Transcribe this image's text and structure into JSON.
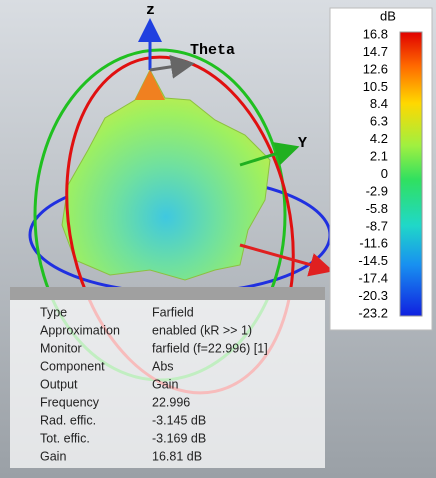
{
  "axes": {
    "z": "z",
    "theta": "Theta",
    "y": "Y"
  },
  "colorbar": {
    "unit": "dB",
    "labels": [
      "16.8",
      "14.7",
      "12.6",
      "10.5",
      "8.4",
      "6.3",
      "4.2",
      "2.1",
      "0",
      "-2.9",
      "-5.8",
      "-8.7",
      "-11.6",
      "-14.5",
      "-17.4",
      "-20.3",
      "-23.2"
    ]
  },
  "info": {
    "rows": [
      [
        "Type",
        "Farfield"
      ],
      [
        "Approximation",
        "enabled (kR >> 1)"
      ],
      [
        "Monitor",
        "farfield (f=22.996) [1]"
      ],
      [
        "Component",
        "Abs"
      ],
      [
        "Output",
        "Gain"
      ],
      [
        "Frequency",
        "22.996"
      ],
      [
        "Rad. effic.",
        "-3.145 dB"
      ],
      [
        "Tot. effic.",
        "-3.169 dB"
      ],
      [
        "Gain",
        "16.81 dB"
      ]
    ]
  }
}
